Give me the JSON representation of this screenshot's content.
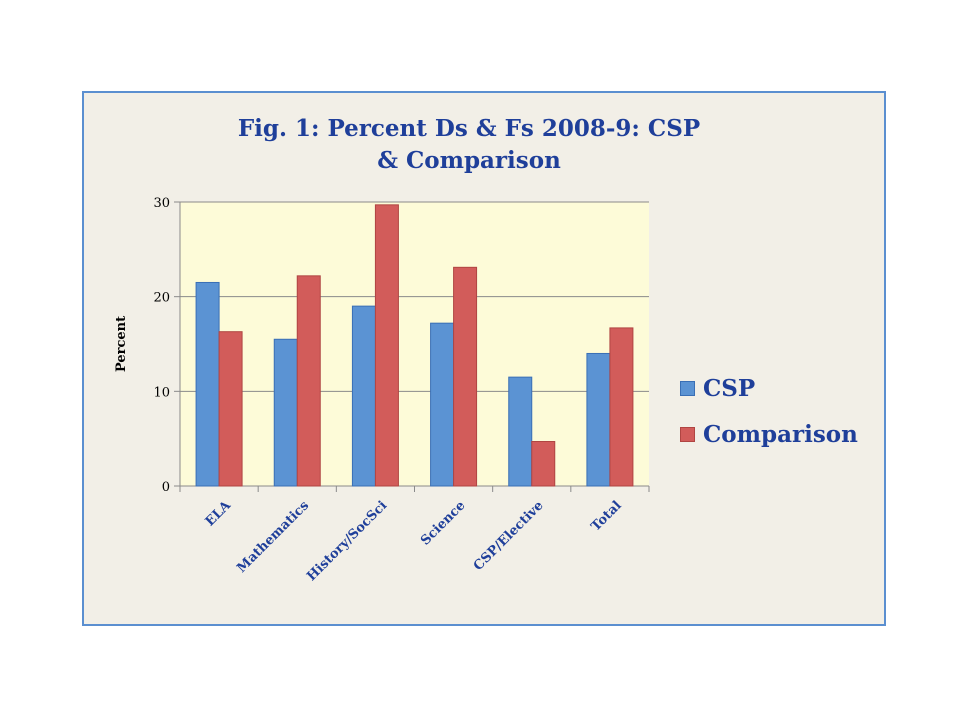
{
  "chart_data": {
    "type": "bar",
    "title": "Fig. 1:  Percent Ds & Fs 2008-9: CSP & Comparison",
    "ylabel": "Percent",
    "xlabel": "",
    "ylim": [
      0,
      30
    ],
    "yticks": [
      0,
      10,
      20,
      30
    ],
    "categories": [
      "ELA",
      "Mathematics",
      "History/SocSci",
      "Science",
      "CSP/Elective",
      "Total"
    ],
    "series": [
      {
        "name": "CSP",
        "color": "#5b93d3",
        "values": [
          21.5,
          15.5,
          19,
          17.2,
          11.5,
          14
        ]
      },
      {
        "name": "Comparison",
        "color": "#d25c5a",
        "values": [
          16.3,
          22.2,
          29.7,
          23.1,
          4.7,
          16.7
        ]
      }
    ],
    "grid": true,
    "legend": "right",
    "plot_background": "#fdfbd8",
    "frame_background": "#f2efe7",
    "frame_border": "#5b8fd0"
  }
}
